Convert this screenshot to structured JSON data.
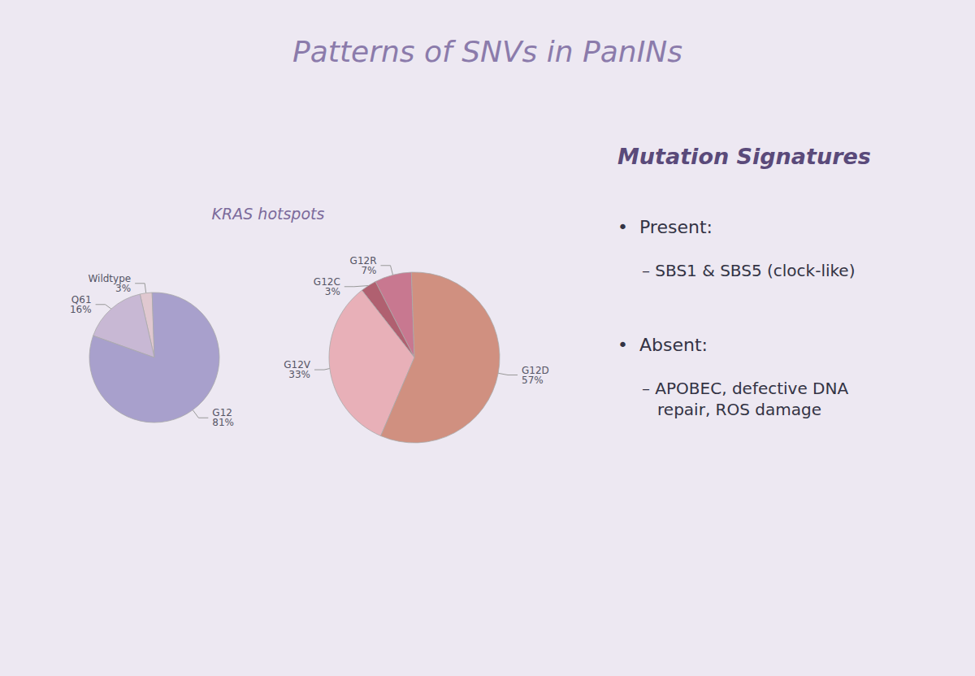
{
  "title": "Patterns of SNVs in PanINs",
  "annotations": [
    "KRAS hotspots",
    "Mutation Signatures",
    "•  Present:",
    "– SBS1 & SBS5 (clock-like)",
    "•  Absent:",
    "– APOBEC, defective DNA\n   repair, ROS damage"
  ],
  "chart_data": [
    {
      "type": "pie",
      "categories": [
        "Wildtype",
        "Q61",
        "G12"
      ],
      "values": [
        3,
        16,
        81
      ],
      "value_labels": [
        "3%",
        "16%",
        "81%"
      ],
      "data_labels": true,
      "colors": [
        "#E0C8D0",
        "#C8B8D4",
        "#A8A0CC"
      ]
    },
    {
      "type": "pie",
      "categories": [
        "G12R",
        "G12C",
        "G12V",
        "G12D"
      ],
      "values": [
        7,
        3,
        33,
        57
      ],
      "value_labels": [
        "7%",
        "3%",
        "33%",
        "57%"
      ],
      "data_labels": true,
      "colors": [
        "#C87890",
        "#B06070",
        "#E8B0B8",
        "#D09080"
      ]
    }
  ]
}
